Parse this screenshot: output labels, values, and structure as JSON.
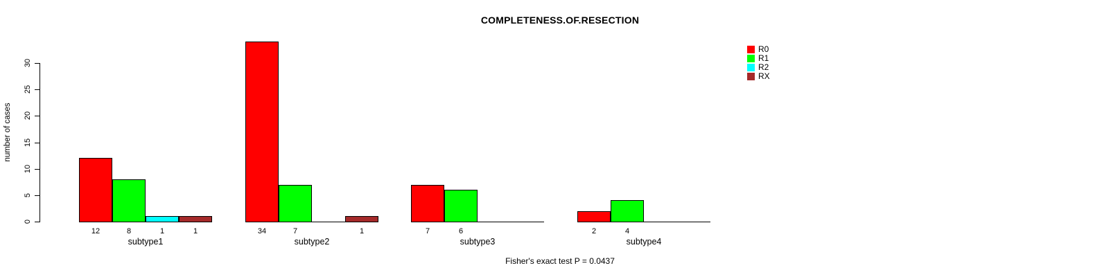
{
  "title": "COMPLETENESS.OF.RESECTION",
  "caption": "Fisher's exact test P = 0.0437",
  "chart_data": {
    "type": "bar",
    "grouped": true,
    "title": "COMPLETENESS.OF.RESECTION",
    "xlabel": "",
    "ylabel": "number of cases",
    "categories": [
      "subtype1",
      "subtype2",
      "subtype3",
      "subtype4"
    ],
    "series": [
      {
        "name": "R0",
        "color": "#FF0000",
        "values": [
          12,
          34,
          7,
          2
        ]
      },
      {
        "name": "R1",
        "color": "#00FF00",
        "values": [
          8,
          7,
          6,
          4
        ]
      },
      {
        "name": "R2",
        "color": "#00FFFF",
        "values": [
          1,
          0,
          0,
          0
        ]
      },
      {
        "name": "RX",
        "color": "#A52A2A",
        "values": [
          1,
          1,
          0,
          0
        ]
      }
    ],
    "yticks": [
      0,
      5,
      10,
      15,
      20,
      25,
      30
    ],
    "ylim": [
      0,
      34
    ],
    "grid": false,
    "value_labels": "shown under each nonzero bar",
    "legend_position": "top-right",
    "annotation": "Fisher's exact test P = 0.0437"
  }
}
